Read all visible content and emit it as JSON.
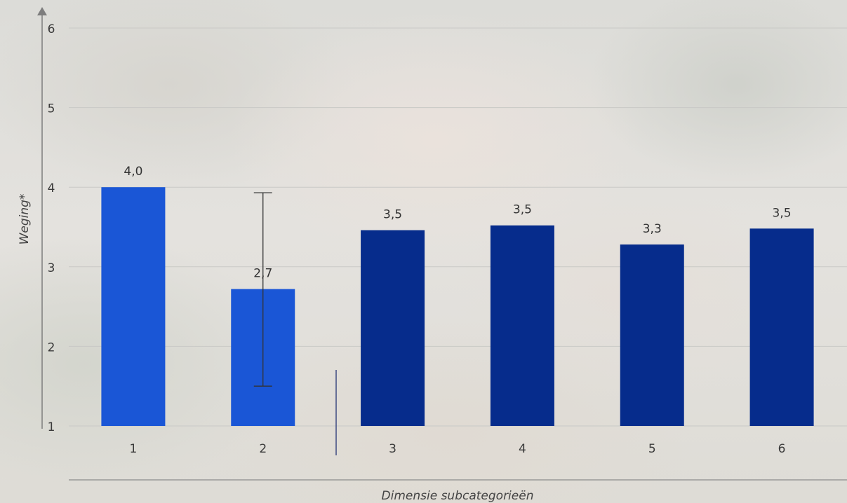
{
  "chart_data": {
    "type": "bar",
    "categories": [
      "1",
      "2",
      "3",
      "4",
      "5",
      "6"
    ],
    "values": [
      4.0,
      2.72,
      3.46,
      3.52,
      3.28,
      3.48
    ],
    "data_labels": [
      "4,0",
      "2,7",
      "3,5",
      "3,5",
      "3,3",
      "3,5"
    ],
    "bar_colors": [
      "#1a56d6",
      "#1a56d6",
      "#062c8c",
      "#062c8c",
      "#062c8c",
      "#062c8c"
    ],
    "error_bar": {
      "category_index": 1,
      "low": 1.5,
      "high": 3.93
    },
    "title": "",
    "xlabel": "Dimensie subcategorieën",
    "ylabel": "Weging*",
    "ylim": [
      1,
      6
    ],
    "yticks": [
      "1",
      "2",
      "3",
      "4",
      "5",
      "6"
    ],
    "grid": true,
    "legend": "none"
  },
  "colors": {
    "grid": "#c9c9c6",
    "axis": "#7d7d7d",
    "separator": "#3d4a80",
    "error_bar": "#333333"
  }
}
